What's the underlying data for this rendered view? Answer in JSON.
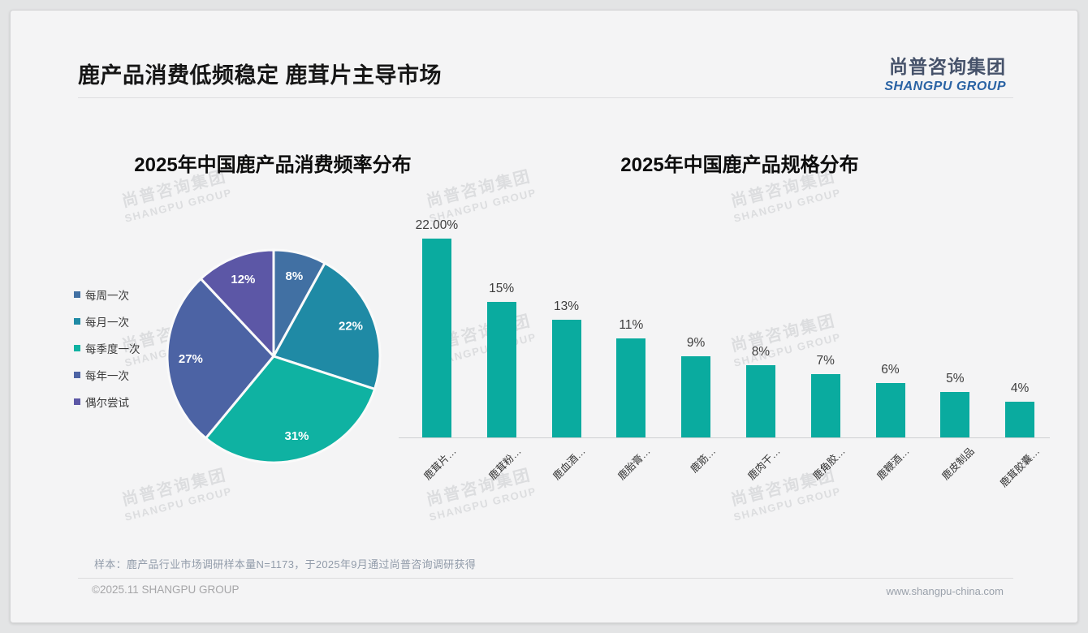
{
  "slide": {
    "title": "鹿产品消费低频稳定 鹿茸片主导市场",
    "logo": {
      "cn": "尚普咨询集团",
      "en": "SHANGPU GROUP"
    },
    "watermark": {
      "cn": "尚普咨询集团",
      "en": "SHANGPU GROUP"
    },
    "footnote": "样本：鹿产品行业市场调研样本量N=1173，于2025年9月通过尚普咨询调研获得",
    "copyright": "©2025.11 SHANGPU GROUP",
    "website": "www.shangpu-china.com"
  },
  "chart_data": [
    {
      "type": "pie",
      "title": "2025年中国鹿产品消费频率分布",
      "categories": [
        "每周一次",
        "每月一次",
        "每季度一次",
        "每年一次",
        "偶尔尝试"
      ],
      "values": [
        8,
        22,
        31,
        27,
        12
      ],
      "labels": [
        "8%",
        "22%",
        "31%",
        "27%",
        "12%"
      ],
      "colors": [
        "#4170a3",
        "#1f8aa5",
        "#0fb2a2",
        "#4c63a4",
        "#5c57a6"
      ],
      "start_angle_deg": 0,
      "direction": "clockwise",
      "legend_position": "left",
      "slice_border_color": "#fafafa"
    },
    {
      "type": "bar",
      "title": "2025年中国鹿产品规格分布",
      "categories": [
        "鹿茸片…",
        "鹿茸粉…",
        "鹿血酒…",
        "鹿胎膏…",
        "鹿筋…",
        "鹿肉干…",
        "鹿角胶…",
        "鹿鞭酒…",
        "鹿皮制品",
        "鹿茸胶囊…"
      ],
      "values": [
        22,
        15,
        13,
        11,
        9,
        8,
        7,
        6,
        5,
        4
      ],
      "labels": [
        "22.00%",
        "15%",
        "13%",
        "11%",
        "9%",
        "8%",
        "7%",
        "6%",
        "5%",
        "4%"
      ],
      "bar_color": "#0aab9f",
      "ylim": [
        0,
        24
      ],
      "grid": false,
      "value_labels": true,
      "x_label_rotation": -45
    }
  ]
}
